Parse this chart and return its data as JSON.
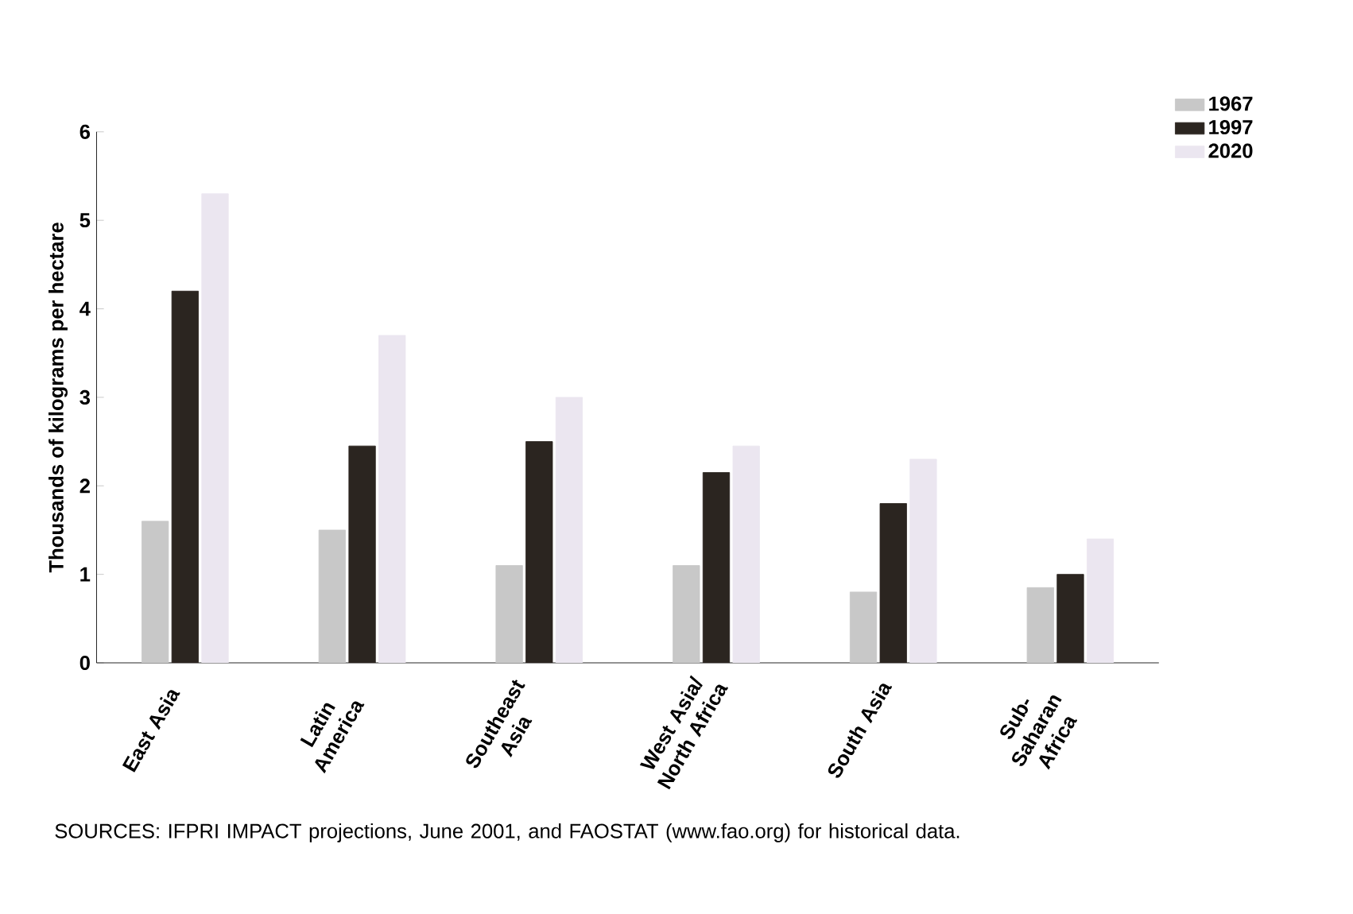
{
  "chart_data": {
    "type": "bar",
    "ylabel": "Thousands of kilograms per hectare",
    "categories": [
      "East Asia",
      "Latin America",
      "Southeast Asia",
      "West Asia/ North Africa",
      "South Asia",
      "Sub-Saharan Africa"
    ],
    "series": [
      {
        "name": "1967",
        "color": "#c8c8c8",
        "values": [
          1.6,
          1.5,
          1.1,
          1.1,
          0.8,
          0.85
        ]
      },
      {
        "name": "1997",
        "color": "#2b2520",
        "values": [
          4.2,
          2.45,
          2.5,
          2.15,
          1.8,
          1.0
        ]
      },
      {
        "name": "2020",
        "color": "#ebe6f0",
        "values": [
          5.3,
          3.7,
          3.0,
          2.45,
          2.3,
          1.4
        ]
      }
    ],
    "ylim": [
      0,
      6
    ],
    "yticks": [
      0,
      1,
      2,
      3,
      4,
      5,
      6
    ],
    "grid": false,
    "legend": "top right",
    "annotations": [
      "SOURCES: IFPRI IMPACT projections, June 2001, and FAOSTAT (www.fao.org) for historical data."
    ]
  }
}
